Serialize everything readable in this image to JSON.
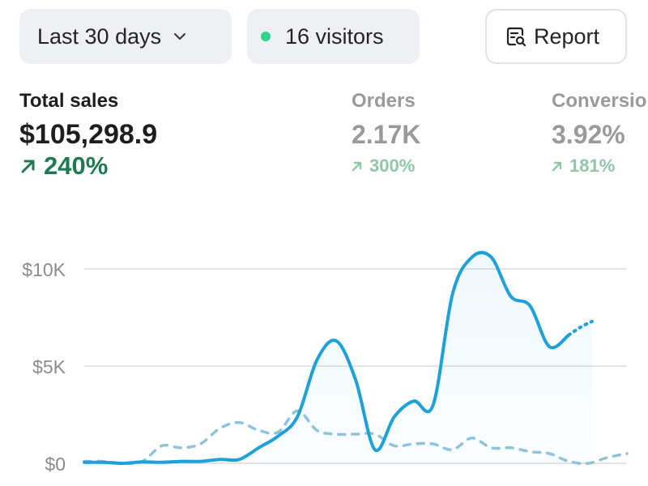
{
  "toolbar": {
    "date_range": "Last 30 days",
    "visitors": "16 visitors",
    "report_label": "Report"
  },
  "metrics": {
    "total_sales": {
      "label": "Total sales",
      "value": "$105,298.9",
      "change": "240%"
    },
    "orders": {
      "label": "Orders",
      "value": "2.17K",
      "change": "300%"
    },
    "conversion": {
      "label": "Conversion",
      "value": "3.92%",
      "change": "181%"
    }
  },
  "colors": {
    "accent": "#1da1d8",
    "positive": "#1f7a54",
    "live_dot": "#2fd38a"
  },
  "chart_data": {
    "type": "line",
    "y_ticks": [
      "$0",
      "$5K",
      "$10K"
    ],
    "ylim": [
      0,
      10000
    ],
    "grid": true,
    "legend": "none",
    "series": [
      {
        "style": "solid",
        "values": [
          50,
          50,
          0,
          70,
          50,
          100,
          100,
          200,
          200,
          800,
          1400,
          2400,
          5300,
          6300,
          4300,
          700,
          2400,
          3200,
          3000,
          8700,
          10600,
          10600,
          8600,
          8100,
          6000,
          6600
        ]
      },
      {
        "style": "dotted-continuation",
        "values": [
          6600,
          7000,
          7300
        ]
      },
      {
        "style": "dashed",
        "values": [
          100,
          100,
          0,
          100,
          900,
          800,
          1000,
          1800,
          2100,
          1700,
          1600,
          2700,
          1700,
          1500,
          1500,
          1500,
          900,
          1000,
          1000,
          700,
          1300,
          800,
          800,
          600,
          500,
          100,
          0,
          300,
          500
        ]
      }
    ]
  }
}
